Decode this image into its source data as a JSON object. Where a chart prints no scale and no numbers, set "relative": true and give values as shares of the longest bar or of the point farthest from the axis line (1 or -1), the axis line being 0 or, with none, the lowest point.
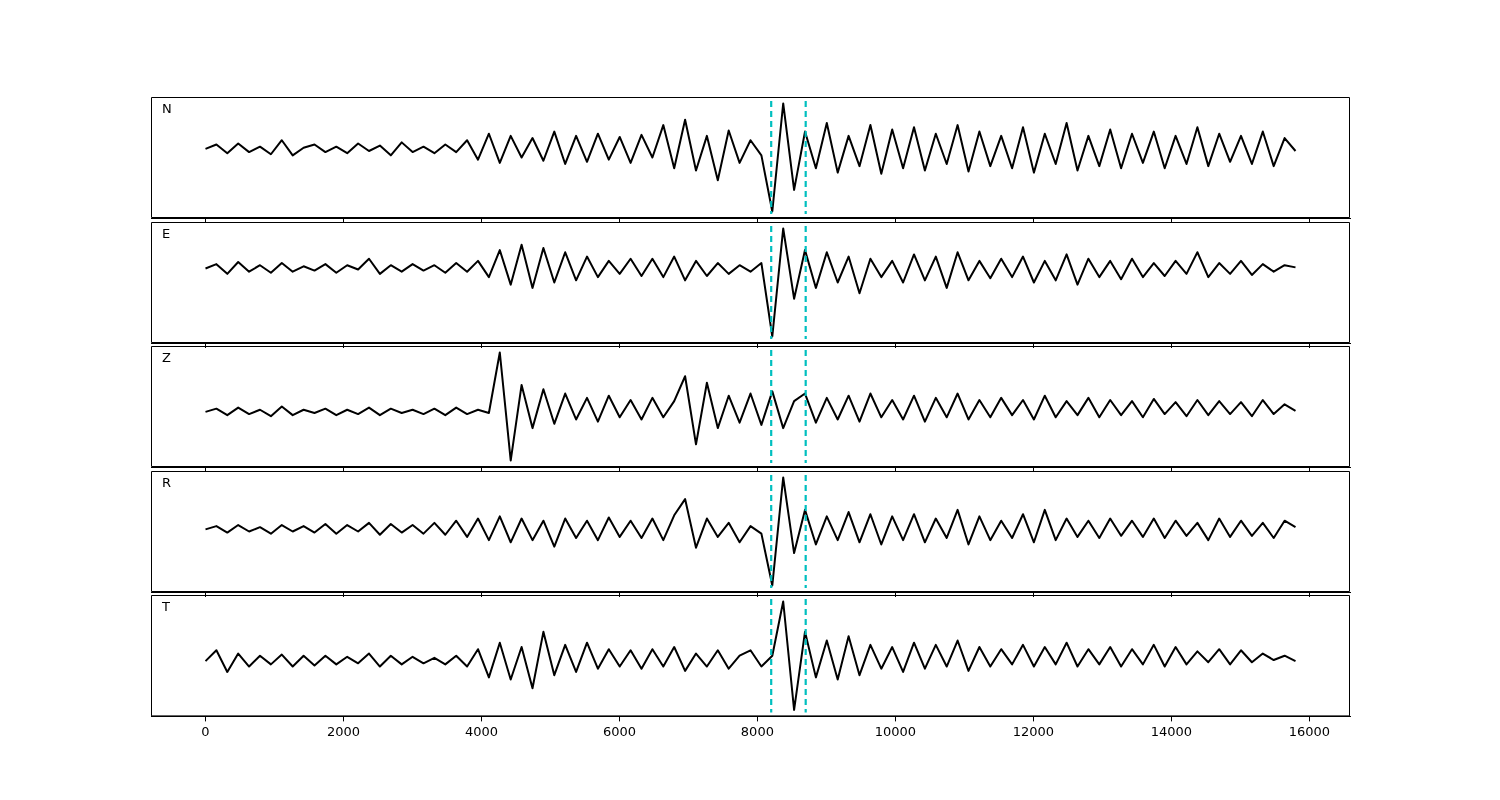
{
  "chart_data": [
    {
      "type": "line",
      "annotations": [
        "N"
      ],
      "relative": true,
      "xlim": [
        -790,
        16590
      ],
      "xticks": [
        0,
        2000,
        4000,
        6000,
        8000,
        10000,
        12000,
        14000,
        16000
      ],
      "tick_labels": false,
      "ref_lines": [
        {
          "axis": "x",
          "value": 8200,
          "color": "#00bfbf",
          "line_style": "dashed"
        },
        {
          "axis": "x",
          "value": 8700,
          "color": "#00bfbf",
          "line_style": "dashed"
        }
      ],
      "x": [
        0,
        158,
        316,
        474,
        632,
        790,
        948,
        1106,
        1264,
        1422,
        1580,
        1738,
        1896,
        2054,
        2212,
        2370,
        2528,
        2686,
        2844,
        3002,
        3160,
        3318,
        3476,
        3634,
        3792,
        3950,
        4108,
        4266,
        4424,
        4582,
        4740,
        4898,
        5056,
        5214,
        5372,
        5530,
        5688,
        5846,
        6004,
        6162,
        6320,
        6478,
        6636,
        6794,
        6952,
        7110,
        7268,
        7426,
        7584,
        7742,
        7900,
        8058,
        8216,
        8374,
        8532,
        8690,
        8848,
        9006,
        9164,
        9322,
        9480,
        9638,
        9796,
        9954,
        10112,
        10270,
        10428,
        10586,
        10744,
        10902,
        11060,
        11218,
        11376,
        11534,
        11692,
        11850,
        12008,
        12166,
        12324,
        12482,
        12640,
        12798,
        12956,
        13114,
        13272,
        13430,
        13588,
        13746,
        13904,
        14062,
        14220,
        14378,
        14536,
        14694,
        14852,
        15010,
        15168,
        15326,
        15484,
        15642,
        15800
      ],
      "series": [
        {
          "color": "#000000",
          "values": [
            0.58,
            0.62,
            0.54,
            0.63,
            0.55,
            0.6,
            0.53,
            0.66,
            0.52,
            0.59,
            0.62,
            0.55,
            0.6,
            0.54,
            0.63,
            0.56,
            0.61,
            0.52,
            0.64,
            0.55,
            0.6,
            0.54,
            0.62,
            0.55,
            0.66,
            0.48,
            0.72,
            0.45,
            0.7,
            0.5,
            0.68,
            0.47,
            0.74,
            0.44,
            0.7,
            0.46,
            0.72,
            0.48,
            0.69,
            0.45,
            0.71,
            0.5,
            0.8,
            0.4,
            0.85,
            0.38,
            0.7,
            0.29,
            0.75,
            0.45,
            0.66,
            0.52,
            0.0,
            1.0,
            0.2,
            0.74,
            0.4,
            0.82,
            0.36,
            0.7,
            0.42,
            0.8,
            0.35,
            0.76,
            0.4,
            0.78,
            0.38,
            0.72,
            0.44,
            0.8,
            0.37,
            0.74,
            0.42,
            0.7,
            0.4,
            0.78,
            0.36,
            0.72,
            0.44,
            0.82,
            0.38,
            0.7,
            0.42,
            0.76,
            0.4,
            0.72,
            0.45,
            0.74,
            0.4,
            0.7,
            0.44,
            0.78,
            0.42,
            0.72,
            0.46,
            0.7,
            0.44,
            0.74,
            0.42,
            0.68,
            0.56
          ]
        }
      ]
    },
    {
      "type": "line",
      "annotations": [
        "E"
      ],
      "relative": true,
      "xlim": [
        -790,
        16590
      ],
      "xticks": [
        0,
        2000,
        4000,
        6000,
        8000,
        10000,
        12000,
        14000,
        16000
      ],
      "tick_labels": false,
      "ref_lines": [
        {
          "axis": "x",
          "value": 8200,
          "color": "#00bfbf",
          "line_style": "dashed"
        },
        {
          "axis": "x",
          "value": 8700,
          "color": "#00bfbf",
          "line_style": "dashed"
        }
      ],
      "x": [
        0,
        158,
        316,
        474,
        632,
        790,
        948,
        1106,
        1264,
        1422,
        1580,
        1738,
        1896,
        2054,
        2212,
        2370,
        2528,
        2686,
        2844,
        3002,
        3160,
        3318,
        3476,
        3634,
        3792,
        3950,
        4108,
        4266,
        4424,
        4582,
        4740,
        4898,
        5056,
        5214,
        5372,
        5530,
        5688,
        5846,
        6004,
        6162,
        6320,
        6478,
        6636,
        6794,
        6952,
        7110,
        7268,
        7426,
        7584,
        7742,
        7900,
        8058,
        8216,
        8374,
        8532,
        8690,
        8848,
        9006,
        9164,
        9322,
        9480,
        9638,
        9796,
        9954,
        10112,
        10270,
        10428,
        10586,
        10744,
        10902,
        11060,
        11218,
        11376,
        11534,
        11692,
        11850,
        12008,
        12166,
        12324,
        12482,
        12640,
        12798,
        12956,
        13114,
        13272,
        13430,
        13588,
        13746,
        13904,
        14062,
        14220,
        14378,
        14536,
        14694,
        14852,
        15010,
        15168,
        15326,
        15484,
        15642,
        15800
      ],
      "series": [
        {
          "color": "#000000",
          "values": [
            0.63,
            0.67,
            0.58,
            0.69,
            0.6,
            0.66,
            0.59,
            0.68,
            0.6,
            0.65,
            0.61,
            0.67,
            0.59,
            0.66,
            0.62,
            0.72,
            0.58,
            0.66,
            0.6,
            0.67,
            0.61,
            0.66,
            0.59,
            0.68,
            0.6,
            0.7,
            0.55,
            0.8,
            0.48,
            0.85,
            0.45,
            0.82,
            0.5,
            0.78,
            0.52,
            0.74,
            0.55,
            0.7,
            0.58,
            0.72,
            0.56,
            0.72,
            0.55,
            0.74,
            0.52,
            0.7,
            0.56,
            0.68,
            0.58,
            0.66,
            0.6,
            0.68,
            0.0,
            1.0,
            0.35,
            0.8,
            0.45,
            0.78,
            0.5,
            0.74,
            0.4,
            0.72,
            0.55,
            0.7,
            0.5,
            0.76,
            0.52,
            0.74,
            0.45,
            0.78,
            0.52,
            0.7,
            0.54,
            0.72,
            0.55,
            0.74,
            0.5,
            0.7,
            0.52,
            0.76,
            0.48,
            0.72,
            0.55,
            0.7,
            0.53,
            0.72,
            0.55,
            0.68,
            0.56,
            0.7,
            0.58,
            0.78,
            0.55,
            0.68,
            0.58,
            0.7,
            0.57,
            0.67,
            0.6,
            0.66,
            0.64
          ]
        }
      ]
    },
    {
      "type": "line",
      "annotations": [
        "Z"
      ],
      "relative": true,
      "xlim": [
        -790,
        16590
      ],
      "xticks": [
        0,
        2000,
        4000,
        6000,
        8000,
        10000,
        12000,
        14000,
        16000
      ],
      "tick_labels": false,
      "ref_lines": [
        {
          "axis": "x",
          "value": 8200,
          "color": "#00bfbf",
          "line_style": "dashed"
        },
        {
          "axis": "x",
          "value": 8700,
          "color": "#00bfbf",
          "line_style": "dashed"
        }
      ],
      "x": [
        0,
        158,
        316,
        474,
        632,
        790,
        948,
        1106,
        1264,
        1422,
        1580,
        1738,
        1896,
        2054,
        2212,
        2370,
        2528,
        2686,
        2844,
        3002,
        3160,
        3318,
        3476,
        3634,
        3792,
        3950,
        4108,
        4266,
        4424,
        4582,
        4740,
        4898,
        5056,
        5214,
        5372,
        5530,
        5688,
        5846,
        6004,
        6162,
        6320,
        6478,
        6636,
        6794,
        6952,
        7110,
        7268,
        7426,
        7584,
        7742,
        7900,
        8058,
        8216,
        8374,
        8532,
        8690,
        8848,
        9006,
        9164,
        9322,
        9480,
        9638,
        9796,
        9954,
        10112,
        10270,
        10428,
        10586,
        10744,
        10902,
        11060,
        11218,
        11376,
        11534,
        11692,
        11850,
        12008,
        12166,
        12324,
        12482,
        12640,
        12798,
        12956,
        13114,
        13272,
        13430,
        13588,
        13746,
        13904,
        14062,
        14220,
        14378,
        14536,
        14694,
        14852,
        15010,
        15168,
        15326,
        15484,
        15642,
        15800
      ],
      "series": [
        {
          "color": "#000000",
          "values": [
            0.45,
            0.48,
            0.42,
            0.49,
            0.43,
            0.47,
            0.41,
            0.5,
            0.42,
            0.47,
            0.44,
            0.48,
            0.42,
            0.47,
            0.43,
            0.49,
            0.42,
            0.48,
            0.44,
            0.47,
            0.43,
            0.48,
            0.42,
            0.49,
            0.43,
            0.47,
            0.44,
            1.0,
            0.0,
            0.7,
            0.3,
            0.66,
            0.34,
            0.62,
            0.38,
            0.58,
            0.36,
            0.6,
            0.4,
            0.56,
            0.38,
            0.58,
            0.4,
            0.55,
            0.78,
            0.15,
            0.72,
            0.3,
            0.6,
            0.35,
            0.62,
            0.33,
            0.64,
            0.3,
            0.55,
            0.62,
            0.35,
            0.58,
            0.38,
            0.6,
            0.36,
            0.62,
            0.4,
            0.56,
            0.38,
            0.6,
            0.36,
            0.58,
            0.4,
            0.62,
            0.38,
            0.56,
            0.4,
            0.58,
            0.42,
            0.56,
            0.38,
            0.6,
            0.4,
            0.55,
            0.42,
            0.58,
            0.4,
            0.56,
            0.42,
            0.55,
            0.4,
            0.57,
            0.43,
            0.54,
            0.41,
            0.56,
            0.42,
            0.55,
            0.43,
            0.54,
            0.41,
            0.56,
            0.43,
            0.52,
            0.46
          ]
        }
      ]
    },
    {
      "type": "line",
      "annotations": [
        "R"
      ],
      "relative": true,
      "xlim": [
        -790,
        16590
      ],
      "xticks": [
        0,
        2000,
        4000,
        6000,
        8000,
        10000,
        12000,
        14000,
        16000
      ],
      "tick_labels": false,
      "ref_lines": [
        {
          "axis": "x",
          "value": 8200,
          "color": "#00bfbf",
          "line_style": "dashed"
        },
        {
          "axis": "x",
          "value": 8700,
          "color": "#00bfbf",
          "line_style": "dashed"
        }
      ],
      "x": [
        0,
        158,
        316,
        474,
        632,
        790,
        948,
        1106,
        1264,
        1422,
        1580,
        1738,
        1896,
        2054,
        2212,
        2370,
        2528,
        2686,
        2844,
        3002,
        3160,
        3318,
        3476,
        3634,
        3792,
        3950,
        4108,
        4266,
        4424,
        4582,
        4740,
        4898,
        5056,
        5214,
        5372,
        5530,
        5688,
        5846,
        6004,
        6162,
        6320,
        6478,
        6636,
        6794,
        6952,
        7110,
        7268,
        7426,
        7584,
        7742,
        7900,
        8058,
        8216,
        8374,
        8532,
        8690,
        8848,
        9006,
        9164,
        9322,
        9480,
        9638,
        9796,
        9954,
        10112,
        10270,
        10428,
        10586,
        10744,
        10902,
        11060,
        11218,
        11376,
        11534,
        11692,
        11850,
        12008,
        12166,
        12324,
        12482,
        12640,
        12798,
        12956,
        13114,
        13272,
        13430,
        13588,
        13746,
        13904,
        14062,
        14220,
        14378,
        14536,
        14694,
        14852,
        15010,
        15168,
        15326,
        15484,
        15642,
        15800
      ],
      "series": [
        {
          "color": "#000000",
          "values": [
            0.52,
            0.55,
            0.49,
            0.56,
            0.5,
            0.54,
            0.48,
            0.56,
            0.5,
            0.55,
            0.49,
            0.57,
            0.48,
            0.56,
            0.5,
            0.58,
            0.47,
            0.57,
            0.49,
            0.56,
            0.48,
            0.58,
            0.47,
            0.6,
            0.45,
            0.62,
            0.42,
            0.64,
            0.4,
            0.62,
            0.42,
            0.6,
            0.36,
            0.62,
            0.44,
            0.6,
            0.42,
            0.63,
            0.45,
            0.6,
            0.44,
            0.62,
            0.42,
            0.65,
            0.8,
            0.35,
            0.62,
            0.45,
            0.58,
            0.4,
            0.55,
            0.48,
            0.0,
            1.0,
            0.3,
            0.7,
            0.38,
            0.64,
            0.42,
            0.68,
            0.4,
            0.66,
            0.38,
            0.64,
            0.42,
            0.66,
            0.4,
            0.62,
            0.44,
            0.7,
            0.38,
            0.64,
            0.42,
            0.6,
            0.44,
            0.66,
            0.4,
            0.7,
            0.42,
            0.62,
            0.45,
            0.6,
            0.44,
            0.62,
            0.46,
            0.6,
            0.45,
            0.62,
            0.44,
            0.6,
            0.46,
            0.58,
            0.42,
            0.62,
            0.45,
            0.6,
            0.46,
            0.58,
            0.44,
            0.6,
            0.54
          ]
        }
      ]
    },
    {
      "type": "line",
      "annotations": [
        "T"
      ],
      "relative": true,
      "xlim": [
        -790,
        16590
      ],
      "xticks": [
        0,
        2000,
        4000,
        6000,
        8000,
        10000,
        12000,
        14000,
        16000
      ],
      "tick_labels": "x",
      "ref_lines": [
        {
          "axis": "x",
          "value": 8200,
          "color": "#00bfbf",
          "line_style": "dashed"
        },
        {
          "axis": "x",
          "value": 8700,
          "color": "#00bfbf",
          "line_style": "dashed"
        }
      ],
      "x": [
        0,
        158,
        316,
        474,
        632,
        790,
        948,
        1106,
        1264,
        1422,
        1580,
        1738,
        1896,
        2054,
        2212,
        2370,
        2528,
        2686,
        2844,
        3002,
        3160,
        3318,
        3476,
        3634,
        3792,
        3950,
        4108,
        4266,
        4424,
        4582,
        4740,
        4898,
        5056,
        5214,
        5372,
        5530,
        5688,
        5846,
        6004,
        6162,
        6320,
        6478,
        6636,
        6794,
        6952,
        7110,
        7268,
        7426,
        7584,
        7742,
        7900,
        8058,
        8216,
        8374,
        8532,
        8690,
        8848,
        9006,
        9164,
        9322,
        9480,
        9638,
        9796,
        9954,
        10112,
        10270,
        10428,
        10586,
        10744,
        10902,
        11060,
        11218,
        11376,
        11534,
        11692,
        11850,
        12008,
        12166,
        12324,
        12482,
        12640,
        12798,
        12956,
        13114,
        13272,
        13430,
        13588,
        13746,
        13904,
        14062,
        14220,
        14378,
        14536,
        14694,
        14852,
        15010,
        15168,
        15326,
        15484,
        15642,
        15800
      ],
      "series": [
        {
          "color": "#000000",
          "values": [
            0.45,
            0.55,
            0.35,
            0.52,
            0.4,
            0.5,
            0.42,
            0.51,
            0.4,
            0.5,
            0.41,
            0.5,
            0.42,
            0.49,
            0.43,
            0.52,
            0.4,
            0.5,
            0.42,
            0.49,
            0.43,
            0.48,
            0.42,
            0.5,
            0.4,
            0.56,
            0.3,
            0.62,
            0.28,
            0.58,
            0.2,
            0.72,
            0.32,
            0.6,
            0.35,
            0.62,
            0.38,
            0.56,
            0.4,
            0.55,
            0.38,
            0.56,
            0.4,
            0.58,
            0.36,
            0.52,
            0.4,
            0.55,
            0.38,
            0.5,
            0.55,
            0.4,
            0.5,
            1.0,
            0.0,
            0.72,
            0.3,
            0.64,
            0.28,
            0.68,
            0.32,
            0.6,
            0.38,
            0.58,
            0.35,
            0.62,
            0.38,
            0.6,
            0.4,
            0.64,
            0.36,
            0.58,
            0.4,
            0.56,
            0.42,
            0.6,
            0.4,
            0.58,
            0.42,
            0.62,
            0.4,
            0.56,
            0.42,
            0.58,
            0.4,
            0.56,
            0.42,
            0.6,
            0.4,
            0.58,
            0.42,
            0.54,
            0.44,
            0.56,
            0.42,
            0.55,
            0.44,
            0.52,
            0.46,
            0.5,
            0.45
          ]
        }
      ]
    }
  ]
}
